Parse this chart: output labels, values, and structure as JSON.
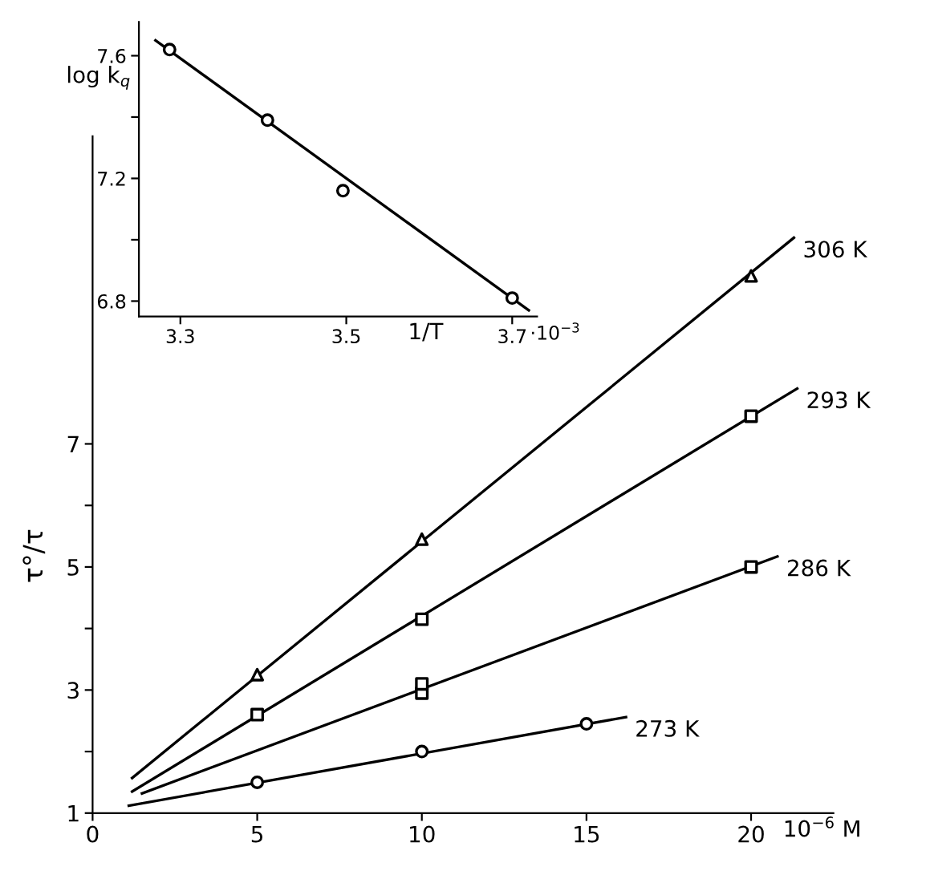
{
  "chart_data": [
    {
      "type": "scatter",
      "xlabel": "10$^{−6}$ M",
      "ylabel": "τ°/τ",
      "xlim": [
        0,
        22.5
      ],
      "ylim": [
        1,
        12
      ],
      "xticks": [
        0,
        5,
        10,
        15,
        20
      ],
      "yticks": [
        1,
        {
          "value": 2,
          "label": null
        },
        3,
        {
          "value": 4,
          "label": null
        },
        5,
        {
          "value": 6,
          "label": null
        },
        7
      ],
      "grid": false,
      "legend": false,
      "series": [
        {
          "name": "306 K",
          "type": "line",
          "color": "#000000",
          "marker": "none",
          "x": [
            1.2,
            21.3
          ],
          "values": [
            1.57,
            10.35
          ]
        },
        {
          "name": "293 K",
          "type": "line",
          "color": "#000000",
          "marker": "none",
          "x": [
            1.2,
            21.4
          ],
          "values": [
            1.35,
            7.9
          ]
        },
        {
          "name": "286 K",
          "type": "line",
          "color": "#000000",
          "marker": "none",
          "x": [
            1.5,
            20.8
          ],
          "values": [
            1.32,
            5.17
          ]
        },
        {
          "name": "273 K",
          "type": "line",
          "color": "#000000",
          "marker": "none",
          "x": [
            1.1,
            16.2
          ],
          "values": [
            1.12,
            2.56
          ]
        },
        {
          "color": "#000000",
          "marker": "triangle",
          "x": [
            5,
            10,
            20
          ],
          "values": [
            3.25,
            5.45,
            9.73
          ]
        },
        {
          "color": "#000000",
          "marker": "square",
          "x": [
            5,
            10,
            20
          ],
          "values": [
            2.6,
            4.15,
            7.45
          ]
        },
        {
          "color": "#000000",
          "marker": "square",
          "x": [
            10,
            10,
            20
          ],
          "values": [
            2.95,
            3.1,
            5.0
          ]
        },
        {
          "color": "#000000",
          "marker": "circle",
          "x": [
            5,
            10,
            15
          ],
          "values": [
            1.5,
            2.0,
            2.45
          ]
        }
      ]
    },
    {
      "type": "scatter",
      "xlabel": "1/T",
      "ylabel": "log k$_{q}$",
      "xlim": [
        3.25,
        3.73
      ],
      "ylim": [
        6.75,
        7.71
      ],
      "xticks": [
        3.3,
        3.5,
        3.7
      ],
      "annotations": [
        "·10$^{−3}$"
      ],
      "yticks": [
        6.8,
        {
          "value": 7.0,
          "label": null
        },
        7.2,
        {
          "value": 7.4,
          "label": null
        },
        7.6
      ],
      "grid": false,
      "legend": false,
      "series": [
        {
          "type": "line",
          "color": "#000000",
          "marker": "none",
          "x": [
            3.27,
            3.72
          ],
          "values": [
            7.65,
            6.77
          ]
        },
        {
          "color": "#000000",
          "marker": "circle",
          "x": [
            3.287,
            3.405,
            3.496,
            3.7
          ],
          "values": [
            7.62,
            7.39,
            7.16,
            6.81
          ]
        }
      ]
    }
  ]
}
